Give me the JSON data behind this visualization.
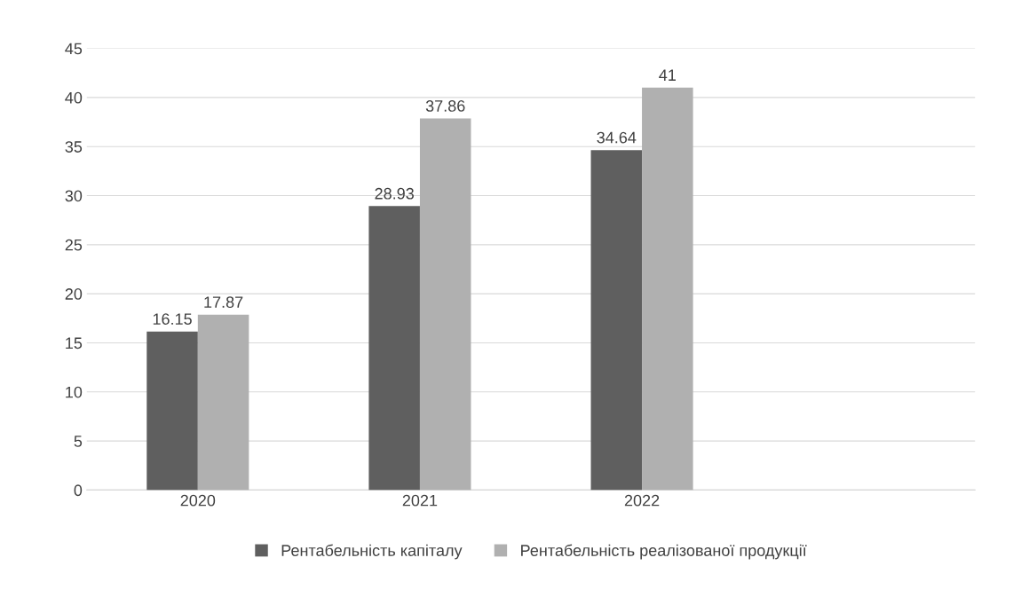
{
  "chart_data": {
    "type": "bar",
    "categories": [
      "2020",
      "2021",
      "2022",
      null
    ],
    "series": [
      {
        "name": "Рентабельність капіталу",
        "color": "#5f5f5f",
        "values": [
          16.15,
          28.93,
          34.64,
          null
        ]
      },
      {
        "name": "Рентабельність реалізованої продукції",
        "color": "#b0b0b0",
        "values": [
          17.87,
          37.86,
          41,
          null
        ]
      }
    ],
    "ylim": [
      0,
      45
    ],
    "yticks": [
      0,
      5,
      10,
      15,
      20,
      25,
      30,
      35,
      40,
      45
    ],
    "grid": "y",
    "legend": "bottom",
    "data_labels": true
  }
}
